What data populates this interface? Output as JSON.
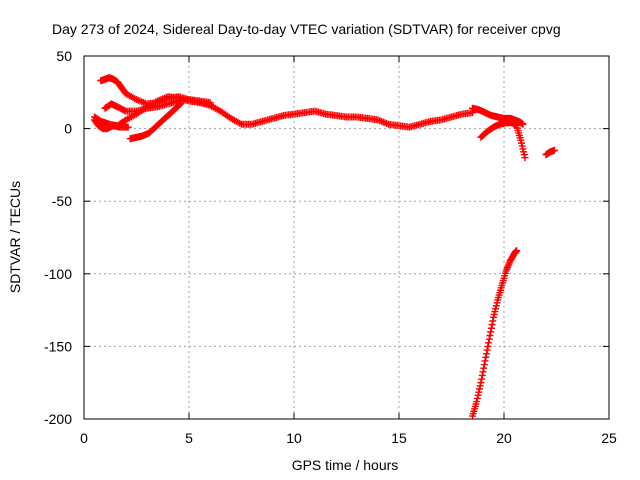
{
  "chart_data": {
    "type": "scatter",
    "title": "Day 273 of 2024, Sidereal Day-to-day VTEC variation (SDTVAR) for receiver cpvg",
    "xlabel": "GPS time / hours",
    "ylabel": "SDTVAR / TECUs",
    "xlim": [
      0,
      25
    ],
    "ylim": [
      -200,
      50
    ],
    "xticks": [
      0,
      5,
      10,
      15,
      20,
      25
    ],
    "xtick_labels": [
      "0",
      "5",
      "10",
      "15",
      "20",
      "25"
    ],
    "yticks": [
      -200,
      -150,
      -100,
      -50,
      0,
      50
    ],
    "ytick_labels": [
      "-200",
      "-150",
      "-100",
      "-50",
      "0",
      "50"
    ],
    "grid": true,
    "marker": "+",
    "color": "#ff0000",
    "series": [
      {
        "name": "main trace",
        "x": [
          0.5,
          0.8,
          1.0,
          1.2,
          1.6,
          2.0,
          2.5,
          3.0,
          3.5,
          4.0,
          4.5,
          5.0,
          5.5,
          6.0,
          6.5,
          7.0,
          7.5,
          8.0,
          8.5,
          9.0,
          9.5,
          10.0,
          10.5,
          11.0,
          11.5,
          12.0,
          12.5,
          13.0,
          13.5,
          14.0,
          14.5,
          15.0,
          15.5,
          16.0,
          16.5,
          17.0,
          17.5,
          18.0,
          18.5
        ],
        "y": [
          8,
          5,
          4,
          3,
          2,
          6,
          10,
          15,
          19,
          22,
          21,
          19,
          18,
          16,
          12,
          7,
          3,
          3,
          5,
          7,
          9,
          10,
          11,
          12,
          10,
          9,
          8,
          8,
          7,
          6,
          3,
          2,
          1,
          3,
          5,
          6,
          8,
          10,
          11
        ]
      },
      {
        "name": "upper arc",
        "x": [
          0.8,
          1.0,
          1.2,
          1.4,
          1.6,
          1.8,
          2.0,
          2.5,
          3.0,
          3.5,
          4.0,
          4.5,
          5.0,
          5.5,
          6.0
        ],
        "y": [
          33,
          34,
          35,
          34,
          32,
          28,
          24,
          20,
          17,
          18,
          21,
          22,
          20,
          19,
          18
        ]
      },
      {
        "name": "lower arc",
        "x": [
          1.0,
          1.3,
          1.6,
          2.0,
          2.5,
          3.0,
          3.5,
          4.0,
          4.5,
          5.0,
          5.5,
          6.0
        ],
        "y": [
          14,
          17,
          15,
          12,
          12,
          14,
          15,
          17,
          19,
          20,
          18,
          17
        ]
      },
      {
        "name": "rising arc",
        "x": [
          2.2,
          2.5,
          2.8,
          3.1,
          3.4,
          3.7,
          4.0,
          4.3,
          4.6
        ],
        "y": [
          -7,
          -6,
          -5,
          -3,
          1,
          5,
          9,
          13,
          17
        ]
      },
      {
        "name": "left scatter",
        "x": [
          0.5,
          0.7,
          0.9,
          1.1,
          1.4,
          1.7,
          2.1
        ],
        "y": [
          6,
          2,
          0,
          0,
          2,
          1,
          1
        ]
      },
      {
        "name": "late segment",
        "x": [
          18.5,
          18.8,
          19.1,
          19.4,
          19.7,
          20.0,
          20.3,
          20.5,
          20.7,
          20.9
        ],
        "y": [
          14,
          13,
          11,
          9,
          8,
          7,
          7,
          6,
          5,
          3
        ]
      },
      {
        "name": "late lower segment",
        "x": [
          18.9,
          19.2,
          19.5,
          19.8,
          20.1,
          20.4,
          20.6,
          20.8,
          21.0
        ],
        "y": [
          -6,
          -2,
          1,
          3,
          4,
          4,
          2,
          -8,
          -20
        ]
      },
      {
        "name": "tail",
        "x": [
          22.0,
          22.2,
          22.4
        ],
        "y": [
          -18,
          -16,
          -15
        ]
      },
      {
        "name": "steep drop",
        "x": [
          18.5,
          18.7,
          18.9,
          19.1,
          19.3,
          19.5,
          19.7,
          19.9,
          20.1,
          20.3,
          20.5,
          20.6
        ],
        "y": [
          -198,
          -188,
          -175,
          -160,
          -145,
          -130,
          -118,
          -108,
          -98,
          -91,
          -86,
          -84
        ]
      }
    ]
  }
}
